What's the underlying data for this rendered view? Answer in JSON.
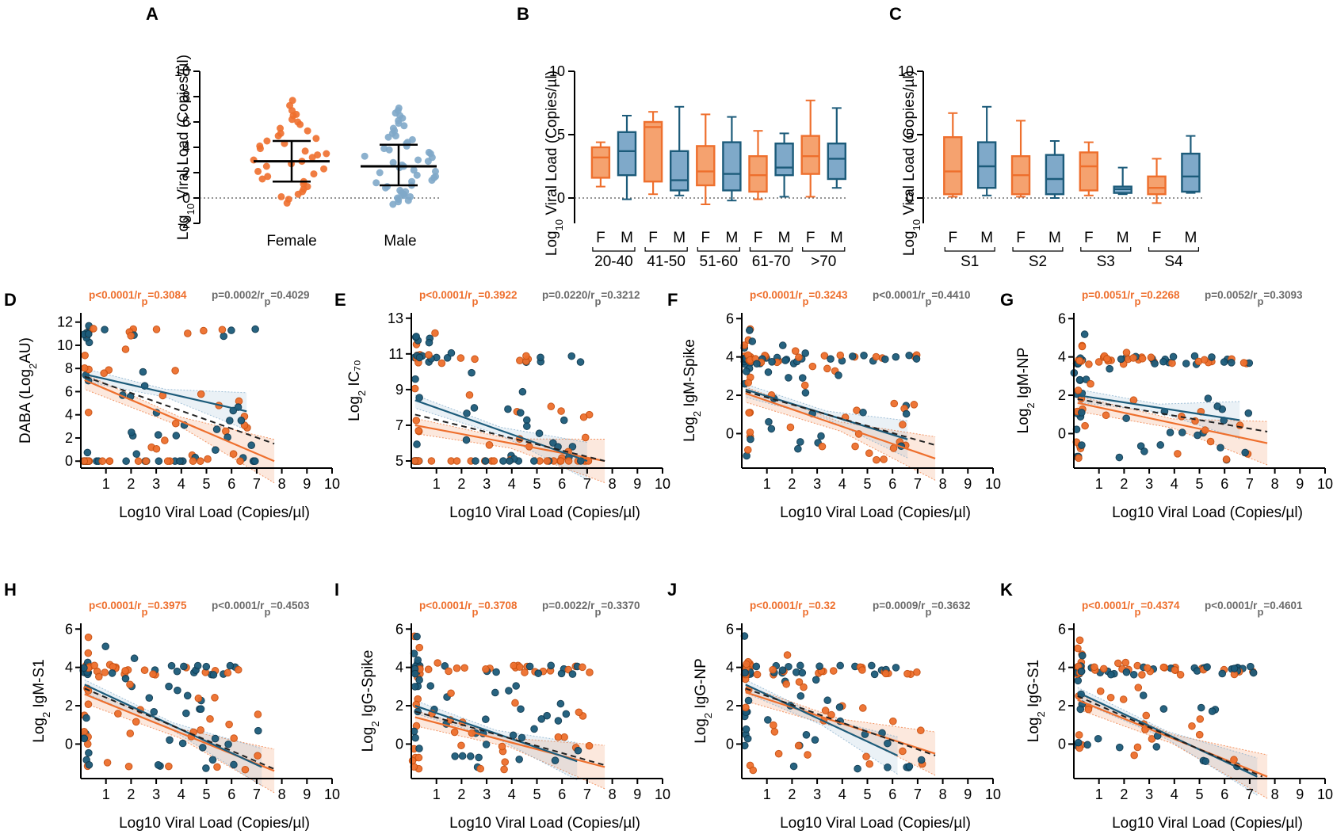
{
  "colors": {
    "female": "#ee6f2d",
    "male": "#1c5b7a",
    "male_fill": "#7fa9c9",
    "axis": "#000000",
    "gray_text": "#6b6b6b"
  },
  "figure": {
    "panel_a": {
      "letter": "A",
      "ylabel_pre": "Log",
      "ylabel_sub": "10",
      "ylabel_post": " Viral Load (Copies/µl)",
      "groups": [
        "Female",
        "Male"
      ]
    },
    "panel_b": {
      "letter": "B",
      "ylabel_pre": "Log",
      "ylabel_sub": "10",
      "ylabel_post": " Viral Load (Copies/µl)",
      "age_groups": [
        "20-40",
        "41-50",
        "51-60",
        "61-70",
        ">70"
      ]
    },
    "panel_c": {
      "letter": "C",
      "ylabel_pre": "Log",
      "ylabel_sub": "10",
      "ylabel_post": " Viral Load (Copies/µl)",
      "stage_groups": [
        "S1",
        "S2",
        "S3",
        "S4"
      ]
    },
    "sex_letters": {
      "female": "F",
      "male": "M"
    },
    "scatter_xlabel": "Log10 Viral Load (Copies/µl)"
  },
  "chart_data": [
    {
      "id": "A",
      "type": "scatter",
      "title": "",
      "ylim": [
        -2,
        10
      ],
      "yticks": [
        -2,
        0,
        2,
        4,
        6,
        8,
        10
      ],
      "categories": [
        "Female",
        "Male"
      ],
      "series": [
        {
          "name": "Female",
          "color": "#ee6f2d",
          "mean": 2.9,
          "sd_low": 1.3,
          "sd_high": 4.5,
          "values": [
            7.7,
            7.3,
            6.9,
            6.6,
            6.5,
            6.2,
            6.0,
            5.8,
            5.5,
            5.3,
            5.1,
            4.9,
            4.7,
            4.5,
            4.3,
            4.1,
            3.9,
            3.7,
            3.5,
            3.4,
            3.2,
            3.0,
            2.9,
            2.7,
            2.5,
            2.3,
            2.1,
            1.9,
            1.7,
            1.5,
            1.3,
            1.1,
            0.9,
            0.7,
            0.5,
            0.3,
            0.1,
            -0.1,
            -0.4
          ]
        },
        {
          "name": "Male",
          "color": "#7fa9c9",
          "mean": 2.5,
          "sd_low": 1.0,
          "sd_high": 4.2,
          "values": [
            7.1,
            6.9,
            6.7,
            6.5,
            6.3,
            6.1,
            5.9,
            5.7,
            5.5,
            5.3,
            5.1,
            4.9,
            4.8,
            4.6,
            4.4,
            4.3,
            4.1,
            3.9,
            3.8,
            3.6,
            3.5,
            3.3,
            3.2,
            3.0,
            2.9,
            2.8,
            2.6,
            2.5,
            2.4,
            2.2,
            2.1,
            2.0,
            1.8,
            1.7,
            1.6,
            1.4,
            1.3,
            1.2,
            1.0,
            0.9,
            0.8,
            0.6,
            0.5,
            0.4,
            0.3,
            0.2,
            0.1,
            0.0,
            -0.1,
            -0.2,
            -0.3,
            -0.5
          ]
        }
      ]
    },
    {
      "id": "B",
      "type": "box",
      "ylim": [
        -2,
        10
      ],
      "yticks": [
        0,
        5,
        10
      ],
      "boxes": [
        {
          "group": "20-40",
          "sex": "F",
          "min": 0.9,
          "q1": 1.6,
          "median": 3.2,
          "q3": 4.0,
          "max": 4.4
        },
        {
          "group": "20-40",
          "sex": "M",
          "min": -0.1,
          "q1": 1.8,
          "median": 3.7,
          "q3": 5.2,
          "max": 6.5
        },
        {
          "group": "41-50",
          "sex": "F",
          "min": 0.3,
          "q1": 1.3,
          "median": 5.6,
          "q3": 6.0,
          "max": 6.8
        },
        {
          "group": "41-50",
          "sex": "M",
          "min": 0.2,
          "q1": 0.6,
          "median": 1.4,
          "q3": 3.7,
          "max": 7.2
        },
        {
          "group": "51-60",
          "sex": "F",
          "min": -0.5,
          "q1": 1.0,
          "median": 2.1,
          "q3": 4.1,
          "max": 6.6
        },
        {
          "group": "51-60",
          "sex": "M",
          "min": -0.2,
          "q1": 0.6,
          "median": 1.9,
          "q3": 4.4,
          "max": 6.4
        },
        {
          "group": "61-70",
          "sex": "F",
          "min": -0.1,
          "q1": 0.5,
          "median": 1.8,
          "q3": 3.3,
          "max": 5.3
        },
        {
          "group": "61-70",
          "sex": "M",
          "min": 0.1,
          "q1": 1.8,
          "median": 2.4,
          "q3": 4.3,
          "max": 5.1
        },
        {
          "group": ">70",
          "sex": "F",
          "min": 0.1,
          "q1": 1.9,
          "median": 3.3,
          "q3": 4.9,
          "max": 7.7
        },
        {
          "group": ">70",
          "sex": "M",
          "min": 0.8,
          "q1": 1.5,
          "median": 3.1,
          "q3": 4.3,
          "max": 7.1
        }
      ]
    },
    {
      "id": "C",
      "type": "box",
      "ylim": [
        -2,
        10
      ],
      "yticks": [
        0,
        5,
        10
      ],
      "boxes": [
        {
          "group": "S1",
          "sex": "F",
          "min": 0.1,
          "q1": 0.3,
          "median": 2.1,
          "q3": 4.8,
          "max": 6.7
        },
        {
          "group": "S1",
          "sex": "M",
          "min": 0.2,
          "q1": 0.8,
          "median": 2.5,
          "q3": 4.4,
          "max": 7.2
        },
        {
          "group": "S2",
          "sex": "F",
          "min": 0.1,
          "q1": 0.3,
          "median": 1.8,
          "q3": 3.3,
          "max": 6.1
        },
        {
          "group": "S2",
          "sex": "M",
          "min": 0.0,
          "q1": 0.3,
          "median": 1.5,
          "q3": 3.4,
          "max": 4.5
        },
        {
          "group": "S3",
          "sex": "F",
          "min": 0.2,
          "q1": 0.6,
          "median": 2.5,
          "q3": 3.6,
          "max": 4.4
        },
        {
          "group": "S3",
          "sex": "M",
          "min": 0.3,
          "q1": 0.4,
          "median": 0.7,
          "q3": 0.9,
          "max": 2.4
        },
        {
          "group": "S4",
          "sex": "F",
          "min": -0.4,
          "q1": 0.3,
          "median": 0.8,
          "q3": 1.7,
          "max": 3.1
        },
        {
          "group": "S4",
          "sex": "M",
          "min": 0.4,
          "q1": 0.5,
          "median": 1.7,
          "q3": 3.5,
          "max": 4.9
        }
      ]
    },
    {
      "id": "D",
      "type": "scatter",
      "ylabel": "DABA (Log",
      "ylabel_sub": "2",
      "ylabel_post": "AU)",
      "xlim": [
        0,
        10
      ],
      "ylim": [
        -0.6,
        12.8
      ],
      "yticks": [
        0,
        2,
        4,
        6,
        8,
        10,
        12
      ],
      "stat_female": "p<0.0001/r_p=0.3084",
      "stat_male": "p=0.0002/r_p=0.4029",
      "stat_f_pre": "p<0.0001/r",
      "stat_f_sub": "p",
      "stat_f_post": "=0.3084",
      "stat_m_pre": "p=0.0002/r",
      "stat_m_sub": "p",
      "stat_m_post": "=0.4029",
      "fit_female": {
        "y0": 7.0,
        "y1": 0.0,
        "x1": 7.7
      },
      "fit_male": {
        "y0": 7.5,
        "y1": 4.3,
        "x1": 6.6
      },
      "fit_dashed": {
        "y0": 7.3,
        "y1": 1.5,
        "x1": 7.7
      }
    },
    {
      "id": "E",
      "type": "scatter",
      "ylabel": "Log",
      "ylabel_sub": "2",
      "ylabel_post": " IC₇₀",
      "xlim": [
        0,
        10
      ],
      "ylim": [
        4.6,
        13.3
      ],
      "yticks": [
        5,
        7,
        9,
        11,
        13
      ],
      "stat_female": "p<0.0001/r_p=0.3922",
      "stat_male": "p=0.0220/r_p=0.3212",
      "stat_f_pre": "p<0.0001/r",
      "stat_f_sub": "p",
      "stat_f_post": "=0.3922",
      "stat_m_pre": "p=0.0220/r",
      "stat_m_sub": "p",
      "stat_m_post": "=0.3212",
      "fit_female": {
        "y0": 7.0,
        "y1": 5.0,
        "x1": 7.7
      },
      "fit_male": {
        "y0": 8.4,
        "y1": 5.0,
        "x1": 7.0
      },
      "fit_dashed": {
        "y0": 7.6,
        "y1": 5.0,
        "x1": 7.7
      }
    },
    {
      "id": "F",
      "type": "scatter",
      "ylabel": "Log",
      "ylabel_sub": "2",
      "ylabel_post": " IgM-Spike",
      "xlim": [
        0,
        10
      ],
      "ylim": [
        -1.8,
        6.3
      ],
      "yticks": [
        0,
        2,
        4,
        6
      ],
      "stat_female": "p<0.0001/r_p=0.3243",
      "stat_male": "p<0.0001/r_p=0.4410",
      "stat_f_pre": "p<0.0001/r",
      "stat_f_sub": "p",
      "stat_f_post": "=0.3243",
      "stat_m_pre": "p<0.0001/r",
      "stat_m_sub": "p",
      "stat_m_post": "=0.4410",
      "fit_female": {
        "y0": 2.1,
        "y1": -1.3,
        "x1": 7.7
      },
      "fit_male": {
        "y0": 2.3,
        "y1": -0.3,
        "x1": 6.6
      },
      "fit_dashed": {
        "y0": 2.2,
        "y1": -0.6,
        "x1": 7.7
      }
    },
    {
      "id": "G",
      "type": "scatter",
      "ylabel": "Log",
      "ylabel_sub": "2",
      "ylabel_post": " IgM-NP",
      "xlim": [
        0,
        10
      ],
      "ylim": [
        -1.8,
        6.3
      ],
      "yticks": [
        0,
        2,
        4,
        6
      ],
      "stat_female": "p=0.0051/r_p=0.2268",
      "stat_male": "p=0.0052/r_p=0.3093",
      "stat_f_pre": "p=0.0051/r",
      "stat_f_sub": "p",
      "stat_f_post": "=0.2268",
      "stat_m_pre": "p=0.0052/r",
      "stat_m_sub": "p",
      "stat_m_post": "=0.3093",
      "fit_female": {
        "y0": 1.6,
        "y1": -0.5,
        "x1": 7.7
      },
      "fit_male": {
        "y0": 2.0,
        "y1": 0.7,
        "x1": 6.6
      },
      "fit_dashed": {
        "y0": 1.8,
        "y1": 0.1,
        "x1": 7.7
      }
    },
    {
      "id": "H",
      "type": "scatter",
      "ylabel": "Log",
      "ylabel_sub": "2",
      "ylabel_post": " IgM-S1",
      "xlim": [
        0,
        10
      ],
      "ylim": [
        -1.8,
        6.3
      ],
      "yticks": [
        0,
        2,
        4,
        6
      ],
      "stat_female": "p<0.0001/r_p=0.3975",
      "stat_male": "p<0.0001/r_p=0.4503",
      "stat_f_pre": "p<0.0001/r",
      "stat_f_sub": "p",
      "stat_f_post": "=0.3975",
      "stat_m_pre": "p<0.0001/r",
      "stat_m_sub": "p",
      "stat_m_post": "=0.4503",
      "fit_female": {
        "y0": 2.6,
        "y1": -1.4,
        "x1": 7.7
      },
      "fit_male": {
        "y0": 3.1,
        "y1": -1.2,
        "x1": 7.2
      },
      "fit_dashed": {
        "y0": 2.9,
        "y1": -1.3,
        "x1": 7.7
      }
    },
    {
      "id": "I",
      "type": "scatter",
      "ylabel": "Log",
      "ylabel_sub": "2",
      "ylabel_post": " IgG-Spike",
      "xlim": [
        0,
        10
      ],
      "ylim": [
        -1.8,
        6.3
      ],
      "yticks": [
        0,
        2,
        4,
        6
      ],
      "stat_female": "p<0.0001/r_p=0.3708",
      "stat_male": "p=0.0022/r_p=0.3370",
      "stat_f_pre": "p<0.0001/r",
      "stat_f_sub": "p",
      "stat_f_post": "=0.3708",
      "stat_m_pre": "p=0.0022/r",
      "stat_m_sub": "p",
      "stat_m_post": "=0.3370",
      "fit_female": {
        "y0": 1.4,
        "y1": -1.2,
        "x1": 7.7
      },
      "fit_male": {
        "y0": 2.0,
        "y1": -0.9,
        "x1": 6.6
      },
      "fit_dashed": {
        "y0": 1.7,
        "y1": -1.1,
        "x1": 7.7
      }
    },
    {
      "id": "J",
      "type": "scatter",
      "ylabel": "Log",
      "ylabel_sub": "2",
      "ylabel_post": " IgG-NP",
      "xlim": [
        0,
        10
      ],
      "ylim": [
        -1.8,
        6.3
      ],
      "yticks": [
        0,
        2,
        4,
        6
      ],
      "stat_female": "p<0.0001/r_p=0.32",
      "stat_male": "p=0.0009/r_p=0.3632",
      "stat_f_pre": "p<0.0001/r",
      "stat_f_sub": "p",
      "stat_f_post": "=0.32",
      "stat_m_pre": "p=0.0009/r",
      "stat_m_sub": "p",
      "stat_m_post": "=0.3632",
      "fit_female": {
        "y0": 2.7,
        "y1": -0.5,
        "x1": 7.7
      },
      "fit_male": {
        "y0": 3.1,
        "y1": -0.6,
        "x1": 6.2
      },
      "fit_dashed": {
        "y0": 2.9,
        "y1": -0.6,
        "x1": 7.7
      }
    },
    {
      "id": "K",
      "type": "scatter",
      "ylabel": "Log",
      "ylabel_sub": "2",
      "ylabel_post": " IgG-S1",
      "xlim": [
        0,
        10
      ],
      "ylim": [
        -1.8,
        6.3
      ],
      "yticks": [
        0,
        2,
        4,
        6
      ],
      "stat_female": "p<0.0001/r_p=0.4374",
      "stat_male": "p<0.0001/r_p=0.4601",
      "stat_f_pre": "p<0.0001/r",
      "stat_f_sub": "p",
      "stat_f_post": "=0.4374",
      "stat_m_pre": "p<0.0001/r",
      "stat_m_sub": "p",
      "stat_m_post": "=0.4601",
      "fit_female": {
        "y0": 2.3,
        "y1": -1.7,
        "x1": 7.7
      },
      "fit_male": {
        "y0": 2.7,
        "y1": -1.7,
        "x1": 7.3
      },
      "fit_dashed": {
        "y0": 2.5,
        "y1": -1.7,
        "x1": 7.5
      }
    }
  ]
}
